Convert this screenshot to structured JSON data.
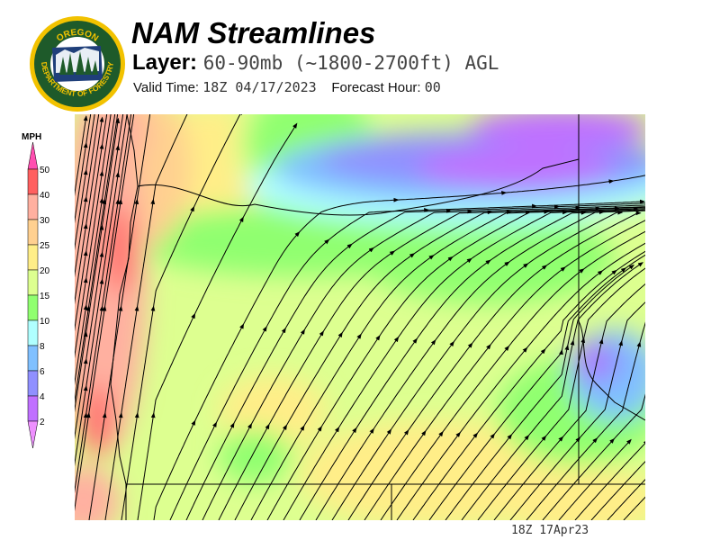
{
  "header": {
    "title": "NAM Streamlines",
    "layer_label": "Layer:",
    "layer_value": "60-90mb (~1800-2700ft) AGL",
    "valid_label": "Valid Time:",
    "valid_value": "18Z 04/17/2023",
    "forecast_label": "Forecast Hour:",
    "forecast_value": "00"
  },
  "logo": {
    "text_top": "OREGON",
    "text_bottom": "DEPARTMENT OF FORESTRY",
    "colors": {
      "ring": "#f2c200",
      "field": "#1e5a2a"
    }
  },
  "colorbar": {
    "unit": "MPH",
    "ticks": [
      "50",
      "40",
      "30",
      "25",
      "20",
      "15",
      "10",
      "8",
      "6",
      "4",
      "2"
    ],
    "colors_top_to_bottom": [
      "#ff4fb0",
      "#ff6060",
      "#ffb0a0",
      "#ffd090",
      "#ffee88",
      "#ddff90",
      "#90ff70",
      "#b0ffff",
      "#80c0ff",
      "#9090ff",
      "#c070ff",
      "#ee90ff"
    ]
  },
  "map": {
    "field": "wind speed streamlines",
    "base_color": "#ddff90"
  },
  "footer": {
    "stamp": "18Z 17Apr23"
  }
}
